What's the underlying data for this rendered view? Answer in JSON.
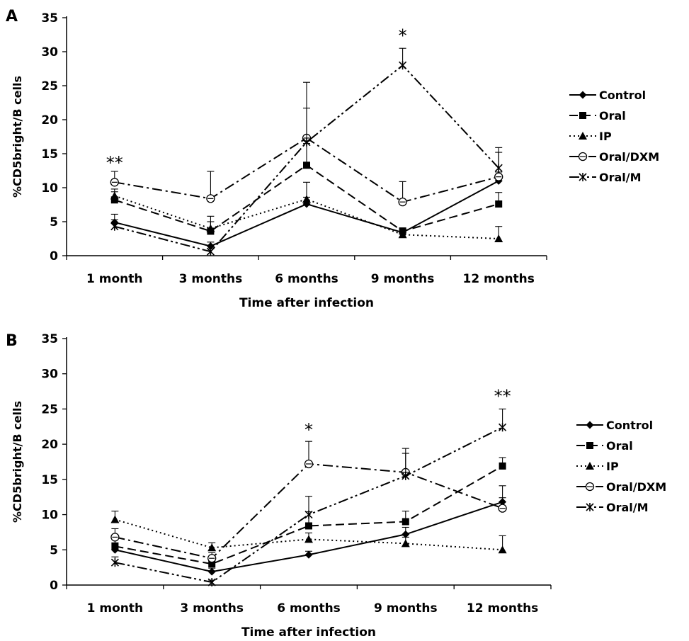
{
  "chart_data": [
    {
      "panel": "A",
      "type": "line",
      "xlabel": "Time after infection",
      "ylabel": "%CD5bright/B cells",
      "ylim": [
        0,
        35
      ],
      "yticks": [
        0,
        5,
        10,
        15,
        20,
        25,
        30,
        35
      ],
      "categories": [
        "1 month",
        "3 months",
        "6 months",
        "9 months",
        "12 months"
      ],
      "legend_position": "right",
      "series": [
        {
          "name": "Control",
          "marker": "diamond",
          "dash": "solid",
          "values": [
            4.9,
            1.4,
            7.6,
            3.4,
            11.0
          ],
          "err": [
            1.2,
            0.6,
            1.0,
            0.6,
            1.3
          ]
        },
        {
          "name": "Oral",
          "marker": "square",
          "dash": "dashed",
          "values": [
            8.2,
            3.6,
            13.3,
            3.6,
            7.6
          ],
          "err": [
            1.2,
            2.2,
            3.2,
            0.5,
            1.7
          ]
        },
        {
          "name": "IP",
          "marker": "triangle",
          "dash": "dotted",
          "values": [
            8.8,
            4.0,
            8.3,
            3.1,
            2.5
          ],
          "err": [
            1.0,
            1.0,
            2.5,
            0.4,
            1.8
          ]
        },
        {
          "name": "Oral/DXM",
          "marker": "circle",
          "dash": "dashdot",
          "values": [
            10.8,
            8.4,
            17.3,
            7.9,
            11.6
          ],
          "err": [
            1.6,
            4.0,
            8.2,
            3.0,
            3.6
          ]
        },
        {
          "name": "Oral/M",
          "marker": "star",
          "dash": "dashdotdot",
          "values": [
            4.3,
            0.6,
            16.7,
            28.0,
            12.9
          ],
          "err": [
            1.0,
            0.4,
            5.0,
            2.5,
            3.0
          ]
        }
      ],
      "annotations": [
        {
          "text": "**",
          "x": "1 month",
          "y": 12.8
        },
        {
          "text": "*",
          "x": "9 months",
          "y": 31.5
        }
      ]
    },
    {
      "panel": "B",
      "type": "line",
      "xlabel": "Time after infection",
      "ylabel": "%CD5bright/B cells",
      "ylim": [
        0,
        35
      ],
      "yticks": [
        0,
        5,
        10,
        15,
        20,
        25,
        30,
        35
      ],
      "categories": [
        "1 month",
        "3 months",
        "6 months",
        "9 months",
        "12 months"
      ],
      "legend_position": "right",
      "series": [
        {
          "name": "Control",
          "marker": "diamond",
          "dash": "solid",
          "values": [
            5.0,
            1.9,
            4.3,
            7.2,
            11.8
          ],
          "err": [
            1.0,
            0.5,
            0.5,
            1.0,
            2.3
          ]
        },
        {
          "name": "Oral",
          "marker": "square",
          "dash": "dashed",
          "values": [
            5.5,
            3.0,
            8.4,
            9.0,
            16.9
          ],
          "err": [
            1.0,
            0.7,
            2.0,
            1.5,
            1.2
          ]
        },
        {
          "name": "IP",
          "marker": "triangle",
          "dash": "dotted",
          "values": [
            9.3,
            5.3,
            6.5,
            5.9,
            5.0
          ],
          "err": [
            1.2,
            0.7,
            0.9,
            0.9,
            2.0
          ]
        },
        {
          "name": "Oral/DXM",
          "marker": "circle",
          "dash": "dashdot",
          "values": [
            6.8,
            3.8,
            17.2,
            16.0,
            10.9
          ],
          "err": [
            1.2,
            0.8,
            3.2,
            3.4,
            1.5
          ]
        },
        {
          "name": "Oral/M",
          "marker": "star",
          "dash": "dashdotdot",
          "values": [
            3.2,
            0.4,
            10.0,
            15.5,
            22.4
          ],
          "err": [
            0.8,
            0.3,
            2.6,
            3.2,
            2.6
          ]
        }
      ],
      "annotations": [
        {
          "text": "*",
          "x": "6 months",
          "y": 21.2
        },
        {
          "text": "**",
          "x": "12 months",
          "y": 26.0
        }
      ]
    }
  ]
}
